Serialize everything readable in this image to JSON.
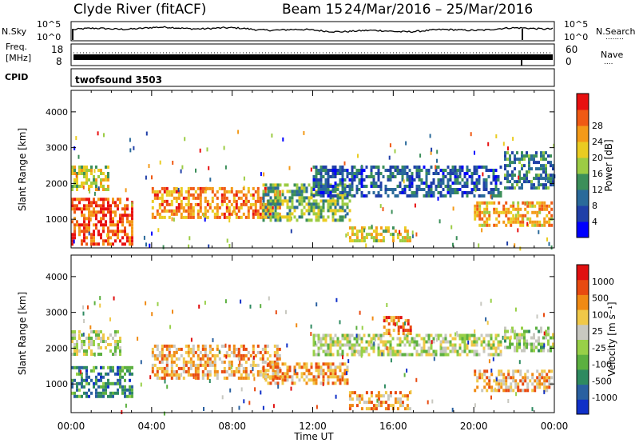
{
  "header": {
    "station": "Clyde River (fitACF)",
    "beam": "Beam 15",
    "date_range": "24/Mar/2016 – 25/Mar/2016"
  },
  "noise_panel": {
    "left_label": "N.Sky",
    "left_ticks": [
      "10^5",
      "10^0"
    ],
    "right_ticks": [
      "10^5",
      "10^0"
    ],
    "right_label": "N.Search",
    "right_marker": "........"
  },
  "freq_panel": {
    "left_label_1": "Freq.",
    "left_label_2": "[MHz]",
    "left_ticks": [
      "18",
      "8"
    ],
    "right_ticks": [
      "60",
      "0"
    ],
    "right_label": "Nave",
    "right_marker": "...."
  },
  "cpid_panel": {
    "label": "CPID",
    "program": "twofsound 3503"
  },
  "colors": {
    "trace": "#000000",
    "white": "#ffffff",
    "gray_scatter": "#c8c8c0"
  },
  "chart_data": [
    {
      "type": "heatmap",
      "quantity": "Power",
      "ylabel": "Slant Range [km]",
      "ylim": [
        200,
        4600
      ],
      "yticks": [
        1000,
        2000,
        3000,
        4000
      ],
      "xlim": [
        0,
        24
      ],
      "colorbar": {
        "label": "Power [dB]",
        "range": [
          0,
          32
        ],
        "ticks": [
          "4",
          "8",
          "12",
          "16",
          "20",
          "24",
          "28"
        ],
        "colors": [
          "#0000ff",
          "#203fa8",
          "#2a6a9a",
          "#3c8f5a",
          "#9ccc44",
          "#eacc22",
          "#f49a18",
          "#f05a14",
          "#e81010"
        ]
      },
      "echo_regions": [
        {
          "t": [
            0.0,
            3.2
          ],
          "r": [
            200,
            1600
          ],
          "level": 0.85
        },
        {
          "t": [
            0.0,
            2.0
          ],
          "r": [
            1700,
            2500
          ],
          "level": 0.55
        },
        {
          "t": [
            4.0,
            10.5
          ],
          "r": [
            1000,
            1900
          ],
          "level": 0.75
        },
        {
          "t": [
            9.5,
            14.0
          ],
          "r": [
            900,
            2000
          ],
          "level": 0.45
        },
        {
          "t": [
            12.0,
            21.5
          ],
          "r": [
            1600,
            2500
          ],
          "level": 0.25
        },
        {
          "t": [
            13.8,
            17.0
          ],
          "r": [
            300,
            800
          ],
          "level": 0.6
        },
        {
          "t": [
            20.0,
            24.0
          ],
          "r": [
            700,
            1500
          ],
          "level": 0.7
        },
        {
          "t": [
            21.5,
            24.0
          ],
          "r": [
            1800,
            2900
          ],
          "level": 0.3
        }
      ]
    },
    {
      "type": "heatmap",
      "quantity": "Velocity",
      "ylabel": "Slant Range [km]",
      "ylim": [
        200,
        4600
      ],
      "yticks": [
        1000,
        2000,
        3000,
        4000
      ],
      "xlim": [
        0,
        24
      ],
      "xlabel": "Time UT",
      "xticks": [
        "00:00",
        "04:00",
        "08:00",
        "12:00",
        "16:00",
        "20:00",
        "00:00"
      ],
      "colorbar": {
        "label": "Velocity [m s⁻¹]",
        "ticks": [
          "1000",
          "500",
          "100",
          "25",
          "-25",
          "-100",
          "-500",
          "-1000"
        ],
        "colors": [
          "#1030c8",
          "#2a60a0",
          "#2e8a60",
          "#5cb040",
          "#98d048",
          "#c8c8c0",
          "#f0c848",
          "#f08a14",
          "#e84a10",
          "#e01010"
        ]
      },
      "echo_regions": [
        {
          "t": [
            0.0,
            3.2
          ],
          "r": [
            600,
            1500
          ],
          "level": 0.25
        },
        {
          "t": [
            0.0,
            2.5
          ],
          "r": [
            1700,
            2500
          ],
          "level": 0.5
        },
        {
          "t": [
            4.0,
            10.5
          ],
          "r": [
            1100,
            2100
          ],
          "level": 0.7
        },
        {
          "t": [
            9.5,
            13.8
          ],
          "r": [
            900,
            1600
          ],
          "level": 0.72
        },
        {
          "t": [
            12.0,
            21.5
          ],
          "r": [
            1700,
            2400
          ],
          "level": 0.5
        },
        {
          "t": [
            13.8,
            17.0
          ],
          "r": [
            250,
            800
          ],
          "level": 0.72
        },
        {
          "t": [
            15.5,
            17.0
          ],
          "r": [
            2300,
            2900
          ],
          "level": 0.8
        },
        {
          "t": [
            20.0,
            24.0
          ],
          "r": [
            700,
            1400
          ],
          "level": 0.68
        },
        {
          "t": [
            21.5,
            24.0
          ],
          "r": [
            1800,
            2600
          ],
          "level": 0.45
        }
      ]
    }
  ]
}
